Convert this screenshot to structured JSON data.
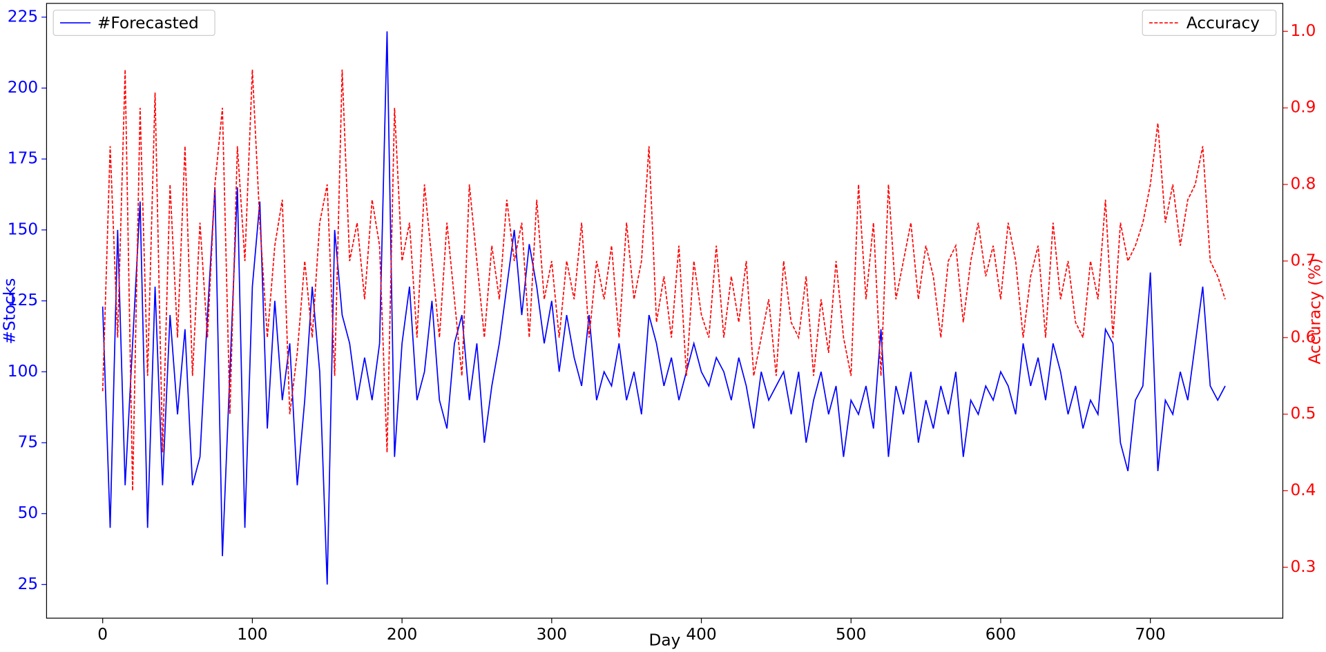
{
  "chart_data": {
    "type": "line",
    "xlabel": "Day",
    "ylabel": "#Stocks",
    "y2label": "Accuracy (%)",
    "x": [
      0,
      5,
      10,
      15,
      20,
      25,
      30,
      35,
      40,
      45,
      50,
      55,
      60,
      65,
      70,
      75,
      80,
      85,
      90,
      95,
      100,
      105,
      110,
      115,
      120,
      125,
      130,
      135,
      140,
      145,
      150,
      155,
      160,
      165,
      170,
      175,
      180,
      185,
      190,
      195,
      200,
      205,
      210,
      215,
      220,
      225,
      230,
      235,
      240,
      245,
      250,
      255,
      260,
      265,
      270,
      275,
      280,
      285,
      290,
      295,
      300,
      305,
      310,
      315,
      320,
      325,
      330,
      335,
      340,
      345,
      350,
      355,
      360,
      365,
      370,
      375,
      380,
      385,
      390,
      395,
      400,
      405,
      410,
      415,
      420,
      425,
      430,
      435,
      440,
      445,
      450,
      455,
      460,
      465,
      470,
      475,
      480,
      485,
      490,
      495,
      500,
      505,
      510,
      515,
      520,
      525,
      530,
      535,
      540,
      545,
      550,
      555,
      560,
      565,
      570,
      575,
      580,
      585,
      590,
      595,
      600,
      605,
      610,
      615,
      620,
      625,
      630,
      635,
      640,
      645,
      650,
      655,
      660,
      665,
      670,
      675,
      680,
      685,
      690,
      695,
      700,
      705,
      710,
      715,
      720,
      725,
      730,
      735,
      740,
      745,
      750
    ],
    "series": [
      {
        "name": "#Forecasted",
        "color": "#0000ff",
        "dash": false,
        "legend": "upper left",
        "values": [
          123,
          45,
          150,
          60,
          110,
          160,
          45,
          130,
          60,
          120,
          85,
          115,
          60,
          70,
          120,
          165,
          35,
          100,
          165,
          45,
          130,
          160,
          80,
          125,
          90,
          110,
          60,
          90,
          130,
          100,
          25,
          150,
          120,
          110,
          90,
          105,
          90,
          110,
          220,
          70,
          110,
          130,
          90,
          100,
          125,
          90,
          80,
          110,
          120,
          90,
          110,
          75,
          95,
          110,
          130,
          150,
          120,
          145,
          130,
          110,
          125,
          100,
          120,
          105,
          95,
          120,
          90,
          100,
          95,
          110,
          90,
          100,
          85,
          120,
          110,
          95,
          105,
          90,
          100,
          110,
          100,
          95,
          105,
          100,
          90,
          105,
          95,
          80,
          100,
          90,
          95,
          100,
          85,
          100,
          75,
          90,
          100,
          85,
          95,
          70,
          90,
          85,
          95,
          80,
          115,
          70,
          95,
          85,
          100,
          75,
          90,
          80,
          95,
          85,
          100,
          70,
          90,
          85,
          95,
          90,
          100,
          95,
          85,
          110,
          95,
          105,
          90,
          110,
          100,
          85,
          95,
          80,
          90,
          85,
          115,
          110,
          75,
          65,
          90,
          95,
          135,
          65,
          90,
          85,
          100,
          90,
          110,
          130,
          95,
          90,
          95
        ]
      },
      {
        "name": "Accuracy",
        "color": "#ff0000",
        "dash": true,
        "axis": "y2",
        "legend": "upper right",
        "values": [
          0.53,
          0.85,
          0.6,
          0.95,
          0.4,
          0.9,
          0.55,
          0.92,
          0.45,
          0.8,
          0.6,
          0.85,
          0.55,
          0.75,
          0.6,
          0.8,
          0.9,
          0.5,
          0.85,
          0.7,
          0.95,
          0.75,
          0.6,
          0.72,
          0.78,
          0.5,
          0.58,
          0.7,
          0.6,
          0.75,
          0.8,
          0.55,
          0.95,
          0.7,
          0.75,
          0.65,
          0.78,
          0.72,
          0.45,
          0.9,
          0.7,
          0.75,
          0.6,
          0.8,
          0.7,
          0.6,
          0.75,
          0.65,
          0.55,
          0.8,
          0.7,
          0.6,
          0.72,
          0.65,
          0.78,
          0.7,
          0.75,
          0.6,
          0.78,
          0.65,
          0.7,
          0.6,
          0.7,
          0.65,
          0.75,
          0.6,
          0.7,
          0.65,
          0.72,
          0.6,
          0.75,
          0.65,
          0.7,
          0.85,
          0.62,
          0.68,
          0.6,
          0.72,
          0.55,
          0.7,
          0.63,
          0.6,
          0.72,
          0.6,
          0.68,
          0.62,
          0.7,
          0.55,
          0.6,
          0.65,
          0.55,
          0.7,
          0.62,
          0.6,
          0.68,
          0.55,
          0.65,
          0.58,
          0.7,
          0.6,
          0.55,
          0.8,
          0.65,
          0.75,
          0.55,
          0.8,
          0.65,
          0.7,
          0.75,
          0.65,
          0.72,
          0.68,
          0.6,
          0.7,
          0.72,
          0.62,
          0.7,
          0.75,
          0.68,
          0.72,
          0.65,
          0.75,
          0.7,
          0.6,
          0.68,
          0.72,
          0.6,
          0.75,
          0.65,
          0.7,
          0.62,
          0.6,
          0.7,
          0.65,
          0.78,
          0.6,
          0.75,
          0.7,
          0.72,
          0.75,
          0.8,
          0.88,
          0.75,
          0.8,
          0.72,
          0.78,
          0.8,
          0.85,
          0.7,
          0.68,
          0.65
        ]
      }
    ],
    "xlim": [
      -37.5,
      788.5
    ],
    "xticks": [
      0,
      100,
      200,
      300,
      400,
      500,
      600,
      700
    ],
    "ylim": [
      13.15,
      229.85
    ],
    "yticks": [
      25,
      50,
      75,
      100,
      125,
      150,
      175,
      200,
      225
    ],
    "y2lim": [
      0.2335,
      1.0365
    ],
    "y2ticks": [
      0.3,
      0.4,
      0.5,
      0.6,
      0.7,
      0.8,
      0.9,
      {
        "value": 1,
        "label": "1.0"
      }
    ]
  }
}
